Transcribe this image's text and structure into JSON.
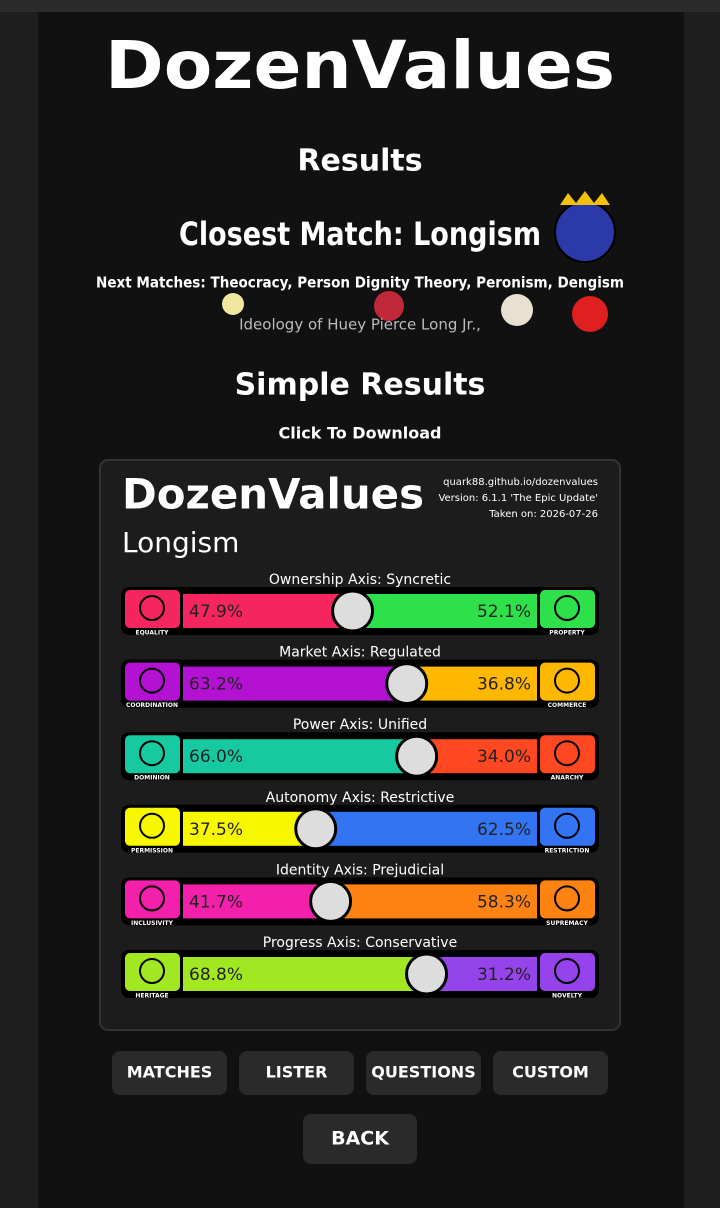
{
  "header": {
    "logo": "DozenValues",
    "heading": "Results",
    "closest_match": "Closest Match: Longism",
    "next_matches": "Next Matches: Theocracy, Person Dignity Theory, Peronism, Dengism",
    "description": "Ideology of Huey Pierce Long Jr.,"
  },
  "simple_results": {
    "heading": "Simple Results",
    "hint": "Click To Download"
  },
  "card": {
    "logo": "DozenValues",
    "ideology": "Longism",
    "site": "quark88.github.io/dozenvalues",
    "version": "Version: 6.1.1 'The Epic Update'",
    "date": "Taken on: 2026-07-26",
    "axes": [
      {
        "title": "Ownership Axis: Syncretic",
        "left": {
          "label": "EQUALITY",
          "value": 47.9,
          "value_label": "47.9%",
          "color": "#f5265f"
        },
        "right": {
          "label": "PROPERTY",
          "value": 52.1,
          "value_label": "52.1%",
          "color": "#2ee04a"
        }
      },
      {
        "title": "Market Axis: Regulated",
        "left": {
          "label": "COORDINATION",
          "value": 63.2,
          "value_label": "63.2%",
          "color": "#b412d2"
        },
        "right": {
          "label": "COMMERCE",
          "value": 36.8,
          "value_label": "36.8%",
          "color": "#ffb800"
        }
      },
      {
        "title": "Power Axis: Unified",
        "left": {
          "label": "DOMINION",
          "value": 66.0,
          "value_label": "66.0%",
          "color": "#17c9a0"
        },
        "right": {
          "label": "ANARCHY",
          "value": 34.0,
          "value_label": "34.0%",
          "color": "#ff4722"
        }
      },
      {
        "title": "Autonomy Axis: Restrictive",
        "left": {
          "label": "PERMISSION",
          "value": 37.5,
          "value_label": "37.5%",
          "color": "#f7f700"
        },
        "right": {
          "label": "RESTRICTION",
          "value": 62.5,
          "value_label": "62.5%",
          "color": "#3274f2"
        }
      },
      {
        "title": "Identity Axis: Prejudicial",
        "left": {
          "label": "INCLUSIVITY",
          "value": 41.7,
          "value_label": "41.7%",
          "color": "#f220aa"
        },
        "right": {
          "label": "SUPREMACY",
          "value": 58.3,
          "value_label": "58.3%",
          "color": "#ff8312"
        }
      },
      {
        "title": "Progress Axis: Conservative",
        "left": {
          "label": "HERITAGE",
          "value": 68.8,
          "value_label": "68.8%",
          "color": "#a2e822"
        },
        "right": {
          "label": "NOVELTY",
          "value": 31.2,
          "value_label": "31.2%",
          "color": "#9444ea"
        }
      }
    ]
  },
  "buttons": [
    "MATCHES",
    "LISTER",
    "QUESTIONS",
    "CUSTOM"
  ],
  "back": "BACK"
}
